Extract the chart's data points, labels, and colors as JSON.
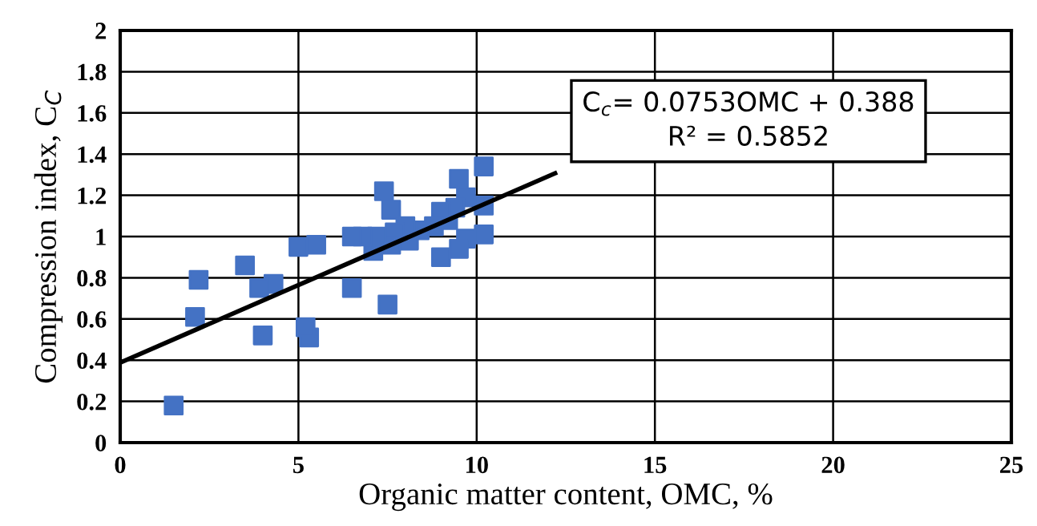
{
  "chart_data": {
    "type": "scatter",
    "xlabel": "Organic matter content, OMC, %",
    "ylabel": "Compression index, C$_{C}$",
    "xlim": [
      0,
      25
    ],
    "xticks": [
      0,
      5,
      10,
      15,
      20,
      25
    ],
    "ylim": [
      0,
      2
    ],
    "yticks": [
      0,
      {
        "value": 0.2,
        "label": "0.2"
      },
      {
        "value": 0.4,
        "label": "0.4"
      },
      {
        "value": 0.6,
        "label": "0.6"
      },
      {
        "value": 0.8,
        "label": "0.8"
      },
      1,
      {
        "value": 1.2,
        "label": "1.2"
      },
      {
        "value": 1.4,
        "label": "1.4"
      },
      {
        "value": 1.6,
        "label": "1.6"
      },
      {
        "value": 1.8,
        "label": "1.8"
      },
      2
    ],
    "grid": true,
    "legend": false,
    "annotations": [
      "C$_{c}$= 0.0753OMC + 0.388\nR² = 0.5852"
    ],
    "series": [
      {
        "marker": "square",
        "color": "#4472c4",
        "x": [
          1.5,
          2.1,
          2.2,
          3.5,
          3.9,
          4.0,
          4.3,
          5.0,
          5.2,
          5.3,
          5.5,
          6.5,
          6.5,
          6.8,
          7.1,
          7.2,
          7.4,
          7.5,
          7.6,
          7.6,
          7.7,
          8.0,
          8.1,
          8.4,
          8.8,
          9.0,
          9.0,
          9.2,
          9.4,
          9.5,
          9.5,
          9.7,
          9.7,
          10.2,
          10.2,
          10.2
        ],
        "values": [
          0.18,
          0.61,
          0.79,
          0.86,
          0.75,
          0.52,
          0.77,
          0.95,
          0.56,
          0.51,
          0.96,
          1.0,
          0.75,
          1.0,
          0.93,
          1.0,
          1.22,
          0.67,
          1.13,
          0.96,
          1.02,
          1.05,
          0.98,
          1.03,
          1.05,
          1.12,
          0.9,
          1.08,
          1.14,
          1.28,
          0.94,
          0.99,
          1.19,
          1.34,
          1.15,
          1.01
        ]
      },
      {
        "type": "line",
        "color": "#000000",
        "x": [
          0,
          12.2
        ],
        "values": [
          0.388,
          1.307
        ]
      }
    ]
  }
}
